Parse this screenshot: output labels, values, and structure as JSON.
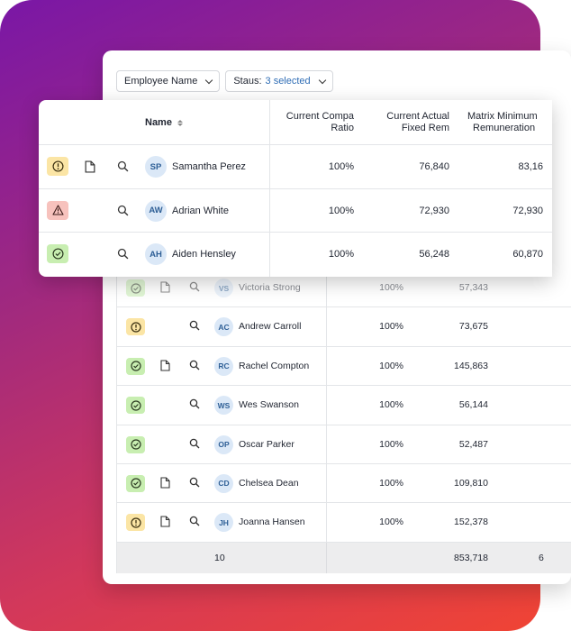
{
  "filters": {
    "employee_name": "Employee Name",
    "status_label": "Staus:",
    "status_value": "3 selected"
  },
  "front_table": {
    "headers": {
      "name": "Name",
      "compa_ratio_line1": "Current Compa",
      "compa_ratio_line2": "Ratio",
      "actual_fixed_line1": "Current Actual",
      "actual_fixed_line2": "Fixed Rem",
      "matrix_min_line1": "Matrix Minimum",
      "matrix_min_line2": "Remuneration"
    },
    "rows": [
      {
        "status": "warning",
        "initials": "SP",
        "name": "Samantha Perez",
        "ratio": "100%",
        "fixed": "76,840",
        "matrix": "83,16"
      },
      {
        "status": "error",
        "initials": "AW",
        "name": "Adrian White",
        "ratio": "100%",
        "fixed": "72,930",
        "matrix": "72,930"
      },
      {
        "status": "ok",
        "initials": "AH",
        "name": "Aiden Hensley",
        "ratio": "100%",
        "fixed": "56,248",
        "matrix": "60,870"
      }
    ]
  },
  "back_table": {
    "rows": [
      {
        "status": "ok",
        "initials": "VS",
        "name": "Victoria Strong",
        "ratio": "100%",
        "fixed": "57,343"
      },
      {
        "status": "warning",
        "initials": "AC",
        "name": "Andrew Carroll",
        "ratio": "100%",
        "fixed": "73,675"
      },
      {
        "status": "ok",
        "initials": "RC",
        "name": "Rachel Compton",
        "ratio": "100%",
        "fixed": "145,863"
      },
      {
        "status": "ok",
        "initials": "WS",
        "name": "Wes Swanson",
        "ratio": "100%",
        "fixed": "56,144"
      },
      {
        "status": "ok",
        "initials": "OP",
        "name": "Oscar Parker",
        "ratio": "100%",
        "fixed": "52,487"
      },
      {
        "status": "ok",
        "initials": "CD",
        "name": "Chelsea Dean",
        "ratio": "100%",
        "fixed": "109,810"
      },
      {
        "status": "warning",
        "initials": "JH",
        "name": "Joanna Hansen",
        "ratio": "100%",
        "fixed": "152,378"
      }
    ],
    "footer": {
      "count": "10",
      "total": "853,718",
      "more": "6"
    }
  },
  "colors": {
    "warning": "#fbe5a5",
    "ok": "#c8eeb1",
    "error": "#f7c2bd",
    "accent": "#2f6db5"
  }
}
